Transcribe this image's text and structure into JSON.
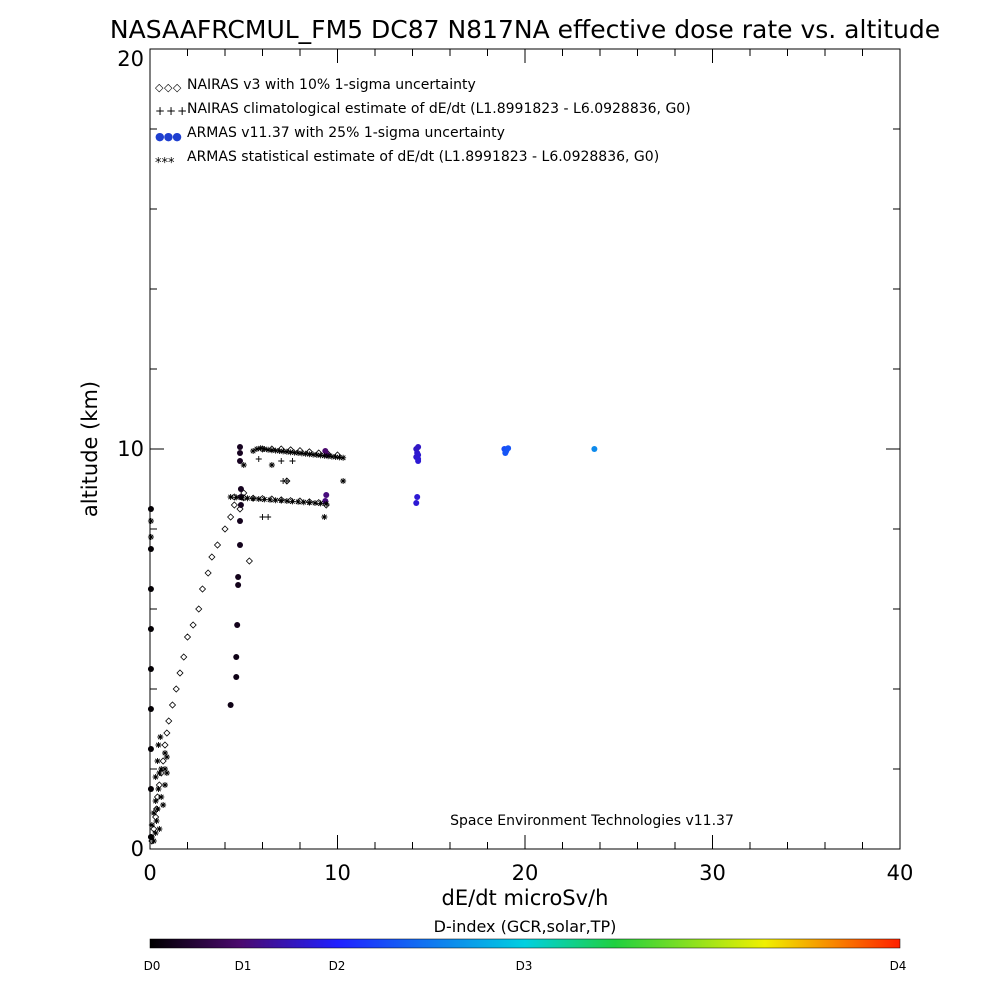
{
  "chart_data": {
    "type": "scatter",
    "title": "NASAAFRCMUL_FM5 DC87 N817NA effective dose rate vs. altitude",
    "xlabel": "dE/dt microSv/h",
    "ylabel": "altitude (km)",
    "xlim": [
      0,
      40
    ],
    "ylim": [
      0,
      20
    ],
    "x_ticks": [
      "0",
      "10",
      "20",
      "30",
      "40"
    ],
    "y_ticks": [
      "0",
      "10",
      "20"
    ],
    "legend_position": "top-left",
    "annotation": "Space Environment Technologies v11.37",
    "legend": [
      {
        "marker": "◇◇◇",
        "label": "NAIRAS v3 with 10% 1-sigma uncertainty"
      },
      {
        "marker": "+++",
        "label": "NAIRAS climatological estimate of dE/dt (L1.8991823 - L6.0928836, G0)"
      },
      {
        "marker": "●●●",
        "label": "ARMAS v11.37 with 25% 1-sigma uncertainty",
        "color": "#1f3fd0"
      },
      {
        "marker": "***",
        "label": "ARMAS statistical estimate of dE/dt (L1.8991823 - L6.0928836, G0)"
      }
    ],
    "colorbar": {
      "title": "D-index (GCR,solar,TP)",
      "labels": [
        "D0",
        "D1",
        "D2",
        "D3",
        "D4"
      ],
      "colors": [
        "#000000",
        "#4b0a6e",
        "#2020ff",
        "#00d0e0",
        "#20d040",
        "#f0f000",
        "#ff2000"
      ]
    },
    "series": [
      {
        "name": "NAIRAS v3 with 10% 1-sigma uncertainty",
        "marker": "diamond",
        "x": [
          0.1,
          0.2,
          0.3,
          0.35,
          0.4,
          0.5,
          0.6,
          0.7,
          0.8,
          0.9,
          1.0,
          1.2,
          1.4,
          1.6,
          1.8,
          2.0,
          2.3,
          2.6,
          2.8,
          3.1,
          3.3,
          3.6,
          4.0,
          4.3,
          4.5,
          4.8,
          5.0,
          5.3,
          6.0,
          6.5,
          7.0,
          7.5,
          8.0,
          8.5,
          9.0,
          9.5,
          10.0,
          4.5,
          5.0,
          5.5,
          6.0,
          6.5,
          7.0,
          7.5,
          8.0,
          8.5,
          9.0,
          9.4,
          7.3
        ],
        "y": [
          0.2,
          0.5,
          0.8,
          1.0,
          1.3,
          1.6,
          1.9,
          2.2,
          2.6,
          2.9,
          3.2,
          3.6,
          4.0,
          4.4,
          4.8,
          5.3,
          5.6,
          6.0,
          6.5,
          6.9,
          7.3,
          7.6,
          8.0,
          8.3,
          8.6,
          8.5,
          8.9,
          7.2,
          10.0,
          10.0,
          10.0,
          9.98,
          9.96,
          9.93,
          9.9,
          9.87,
          9.85,
          8.8,
          8.78,
          8.77,
          8.76,
          8.75,
          8.73,
          8.71,
          8.7,
          8.68,
          8.66,
          8.6,
          9.2
        ]
      },
      {
        "name": "NAIRAS climatological estimate of dE/dt (L1.8991823 - L6.0928836, G0)",
        "marker": "plus",
        "x": [
          5.8,
          7.0,
          7.3,
          7.6,
          6.0,
          6.3,
          7.1
        ],
        "y": [
          9.75,
          9.7,
          9.2,
          9.7,
          8.3,
          8.3,
          9.2
        ]
      },
      {
        "name": "ARMAS v11.37 with 25% 1-sigma uncertainty",
        "marker": "dot",
        "x": [
          0.05,
          0.05,
          0.05,
          0.05,
          0.05,
          0.05,
          0.05,
          0.05,
          0.05,
          4.3,
          4.6,
          4.6,
          4.65,
          4.7,
          4.7,
          4.8,
          4.8,
          4.85,
          4.85,
          4.85,
          4.8,
          4.8,
          4.8,
          9.35,
          9.45,
          9.4,
          9.35,
          14.2,
          14.3,
          14.25,
          14.2,
          14.3,
          14.2,
          14.25,
          14.3,
          14.3,
          18.9,
          19.0,
          18.95,
          19.1,
          23.7
        ],
        "y": [
          0.3,
          1.5,
          2.5,
          3.5,
          4.5,
          5.5,
          6.5,
          7.5,
          8.5,
          3.6,
          4.3,
          4.8,
          5.6,
          6.6,
          6.8,
          7.6,
          8.2,
          8.6,
          8.8,
          9.0,
          9.7,
          9.9,
          10.05,
          9.95,
          9.85,
          8.85,
          8.7,
          10.0,
          10.05,
          9.9,
          9.8,
          9.85,
          8.65,
          8.8,
          9.7,
          9.75,
          10.0,
          9.95,
          9.9,
          10.02,
          10.0
        ],
        "d_index": [
          0.02,
          0.02,
          0.02,
          0.02,
          0.02,
          0.02,
          0.02,
          0.02,
          0.02,
          0.1,
          0.1,
          0.1,
          0.12,
          0.12,
          0.12,
          0.13,
          0.13,
          0.14,
          0.14,
          0.14,
          0.15,
          0.15,
          0.15,
          0.5,
          0.5,
          0.55,
          0.55,
          0.8,
          0.8,
          0.82,
          0.82,
          0.84,
          0.85,
          0.85,
          0.85,
          0.85,
          1.25,
          1.28,
          1.3,
          1.3,
          1.6
        ]
      },
      {
        "name": "ARMAS statistical estimate of dE/dt (L1.8991823 - L6.0928836, G0)",
        "marker": "asterisk",
        "x": [
          0.05,
          0.05,
          0.1,
          0.1,
          0.2,
          0.2,
          0.3,
          0.3,
          0.3,
          0.35,
          0.4,
          0.4,
          0.45,
          0.45,
          0.5,
          0.5,
          0.55,
          0.6,
          0.6,
          0.7,
          0.8,
          0.8,
          0.8,
          0.9,
          0.9,
          5.5,
          5.7,
          5.9,
          6.1,
          6.3,
          6.5,
          6.7,
          6.9,
          7.1,
          7.3,
          7.5,
          7.7,
          7.9,
          8.1,
          8.3,
          8.5,
          8.7,
          8.9,
          9.1,
          9.3,
          9.5,
          9.7,
          9.9,
          10.1,
          10.3,
          4.3,
          4.6,
          4.9,
          5.2,
          5.5,
          5.8,
          6.1,
          6.4,
          6.7,
          7.0,
          7.3,
          7.6,
          7.9,
          8.2,
          8.5,
          8.8,
          9.1,
          9.4,
          5.0,
          6.5,
          9.3,
          10.3
        ],
        "y": [
          8.2,
          7.8,
          0.3,
          0.6,
          0.2,
          0.9,
          0.4,
          1.2,
          1.8,
          0.7,
          1.0,
          2.2,
          1.5,
          2.6,
          0.5,
          1.9,
          2.8,
          1.3,
          2.0,
          1.1,
          1.6,
          2.0,
          2.4,
          1.9,
          2.3,
          9.95,
          10.0,
          10.02,
          10.0,
          9.98,
          9.97,
          9.96,
          9.95,
          9.94,
          9.93,
          9.92,
          9.91,
          9.9,
          9.89,
          9.88,
          9.87,
          9.86,
          9.85,
          9.84,
          9.83,
          9.82,
          9.81,
          9.8,
          9.79,
          9.78,
          8.8,
          8.79,
          8.78,
          8.77,
          8.76,
          8.75,
          8.74,
          8.73,
          8.72,
          8.71,
          8.7,
          8.69,
          8.68,
          8.67,
          8.66,
          8.65,
          8.64,
          8.63,
          9.6,
          9.6,
          8.3,
          9.2
        ]
      }
    ]
  }
}
